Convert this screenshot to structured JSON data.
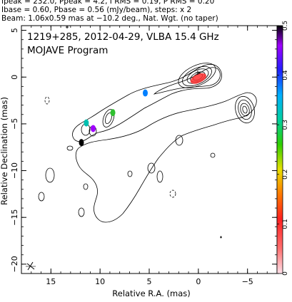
{
  "header_lines": [
    "Ipeak = 232.0, Ppeak = 4.2, I RMS = 0.19, P RMS = 0.20",
    "Ibase = 0.60, Pbase = 0.56 (mJy/beam), steps: x 2",
    "Beam: 1.06x0.59 mas at −10.2 deg., Nat. Wgt. (no taper)"
  ],
  "chart_data": {
    "type": "contour",
    "title": "1219+285, 2012-04-29, VLBA 15.4 GHz",
    "subtitle": "MOJAVE Program",
    "xlabel": "Relative R.A. (mas)",
    "ylabel": "Relative Declination (mas)",
    "xlim": [
      18,
      -8
    ],
    "ylim": [
      -21,
      5.5
    ],
    "x_ticks": [
      15,
      10,
      5,
      0,
      -5
    ],
    "y_ticks": [
      5,
      0,
      -5,
      -10,
      -15,
      -20
    ],
    "grid": false,
    "colorbar": {
      "range": [
        0,
        0.5
      ],
      "ticks": [
        0,
        0.1,
        0.2,
        0.3,
        0.4,
        0.5
      ],
      "colors": [
        "#ffe0e8",
        "#ff7070",
        "#ff2020",
        "#ff7a00",
        "#e8e000",
        "#30d000",
        "#00d0a0",
        "#00b0ff",
        "#2020ff",
        "#a000ff",
        "#000000"
      ]
    },
    "beam": {
      "major_mas": 1.06,
      "minor_mas": 0.59,
      "pa_deg": -10.2,
      "position": "bottom-left"
    },
    "core": {
      "x": 0,
      "y": 0
    },
    "features": [
      {
        "x": 0,
        "y": 0,
        "color": "#ff3030"
      },
      {
        "x": 8.7,
        "y": -3.8,
        "color": "#30c030"
      },
      {
        "x": 10.7,
        "y": -5.5,
        "color": "#a000ff"
      },
      {
        "x": 11.4,
        "y": -4.9,
        "color": "#00c0b0"
      },
      {
        "x": 5.4,
        "y": -1.7,
        "color": "#0080ff"
      },
      {
        "x": 11.9,
        "y": -7.0,
        "color": "#000000"
      }
    ]
  }
}
